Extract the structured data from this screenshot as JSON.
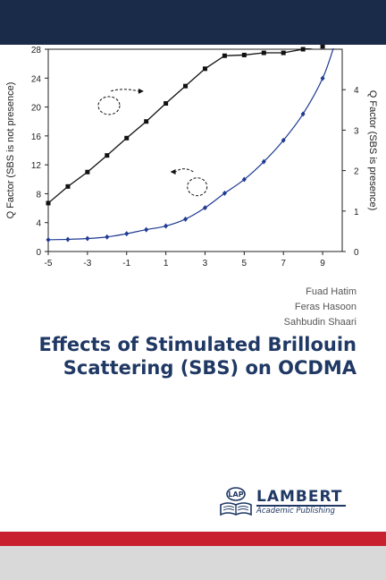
{
  "authors": [
    "Fuad Hatim",
    "Feras Hasoon",
    "Sahbudin Shaari"
  ],
  "book_title": "Effects of Stimulated Brillouin Scattering (SBS) on OCDMA",
  "publisher": {
    "name": "LAMBERT",
    "subtitle": "Academic Publishing",
    "logo_text": "LAP"
  },
  "colors": {
    "top_band": "#1a2b4a",
    "title": "#1f3864",
    "red_band": "#c8202e",
    "grey_band": "#d9d9d9",
    "blue_series": "#1f3a93"
  },
  "chart_data": {
    "type": "line",
    "title": "",
    "xlabel": "",
    "ylabel": "Q Factor (SBS is not presence)",
    "y2label": "Q Factor (SBS is presence)",
    "xlim": [
      -5,
      10
    ],
    "ylim": [
      0,
      28
    ],
    "y2lim": [
      0,
      5
    ],
    "xticks": [
      "-5",
      "-3",
      "-1",
      "1",
      "3",
      "5",
      "7",
      "9"
    ],
    "yticks": [
      "0",
      "4",
      "8",
      "12",
      "16",
      "20",
      "24",
      "28"
    ],
    "y2ticks": [
      "0",
      "1",
      "2",
      "3",
      "4"
    ],
    "series": [
      {
        "axis": "left",
        "marker": "square",
        "x": [
          -5,
          -4,
          -3,
          -2,
          -1,
          0,
          1,
          2,
          3,
          4,
          5,
          6,
          7,
          8,
          9
        ],
        "y": [
          6.7,
          9.0,
          11.0,
          13.3,
          15.7,
          18.0,
          20.5,
          22.9,
          25.3,
          27.1,
          27.2,
          27.5,
          27.5,
          28.0,
          28.4
        ]
      },
      {
        "axis": "right",
        "marker": "diamond",
        "x": [
          -5,
          -4,
          -3,
          -2,
          -1,
          0,
          1,
          2,
          3,
          4,
          5,
          6,
          7,
          8,
          9
        ],
        "y": [
          0.29,
          0.3,
          0.32,
          0.36,
          0.44,
          0.54,
          0.63,
          0.8,
          1.08,
          1.44,
          1.78,
          2.22,
          2.75,
          3.4,
          4.28
        ]
      }
    ]
  }
}
